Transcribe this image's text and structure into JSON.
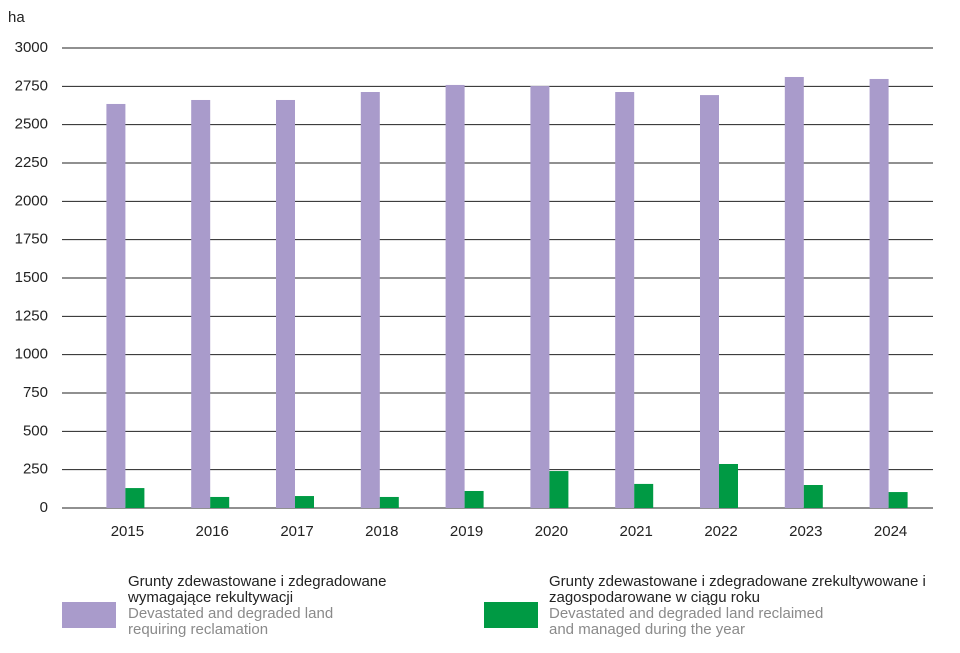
{
  "chart_data": {
    "type": "bar",
    "y_label": "ha",
    "categories": [
      "2015",
      "2016",
      "2017",
      "2018",
      "2019",
      "2020",
      "2021",
      "2022",
      "2023",
      "2024"
    ],
    "series": [
      {
        "name": "Grunty zdewastowane i zdegradowane wymagające rekultywacji",
        "name_en": "Devastated and degraded land requiring reclamation",
        "color": "#a99bcb",
        "values": [
          2635,
          2661,
          2661,
          2713,
          2759,
          2752,
          2713,
          2693,
          2811,
          2798
        ]
      },
      {
        "name": "Grunty zdewastowane i zdegradowane zrekultywowane i zagospodarowane w ciągu roku",
        "name_en": "Devastated and degraded land reclaimed and managed during the year",
        "color": "#009a44",
        "values": [
          130,
          72,
          78,
          72,
          111,
          241,
          157,
          287,
          150,
          104
        ]
      }
    ],
    "ylim": [
      0,
      3000
    ],
    "yticks": [
      0,
      250,
      500,
      750,
      1000,
      1250,
      1500,
      1750,
      2000,
      2250,
      2500,
      2750,
      3000
    ],
    "grid": true
  }
}
